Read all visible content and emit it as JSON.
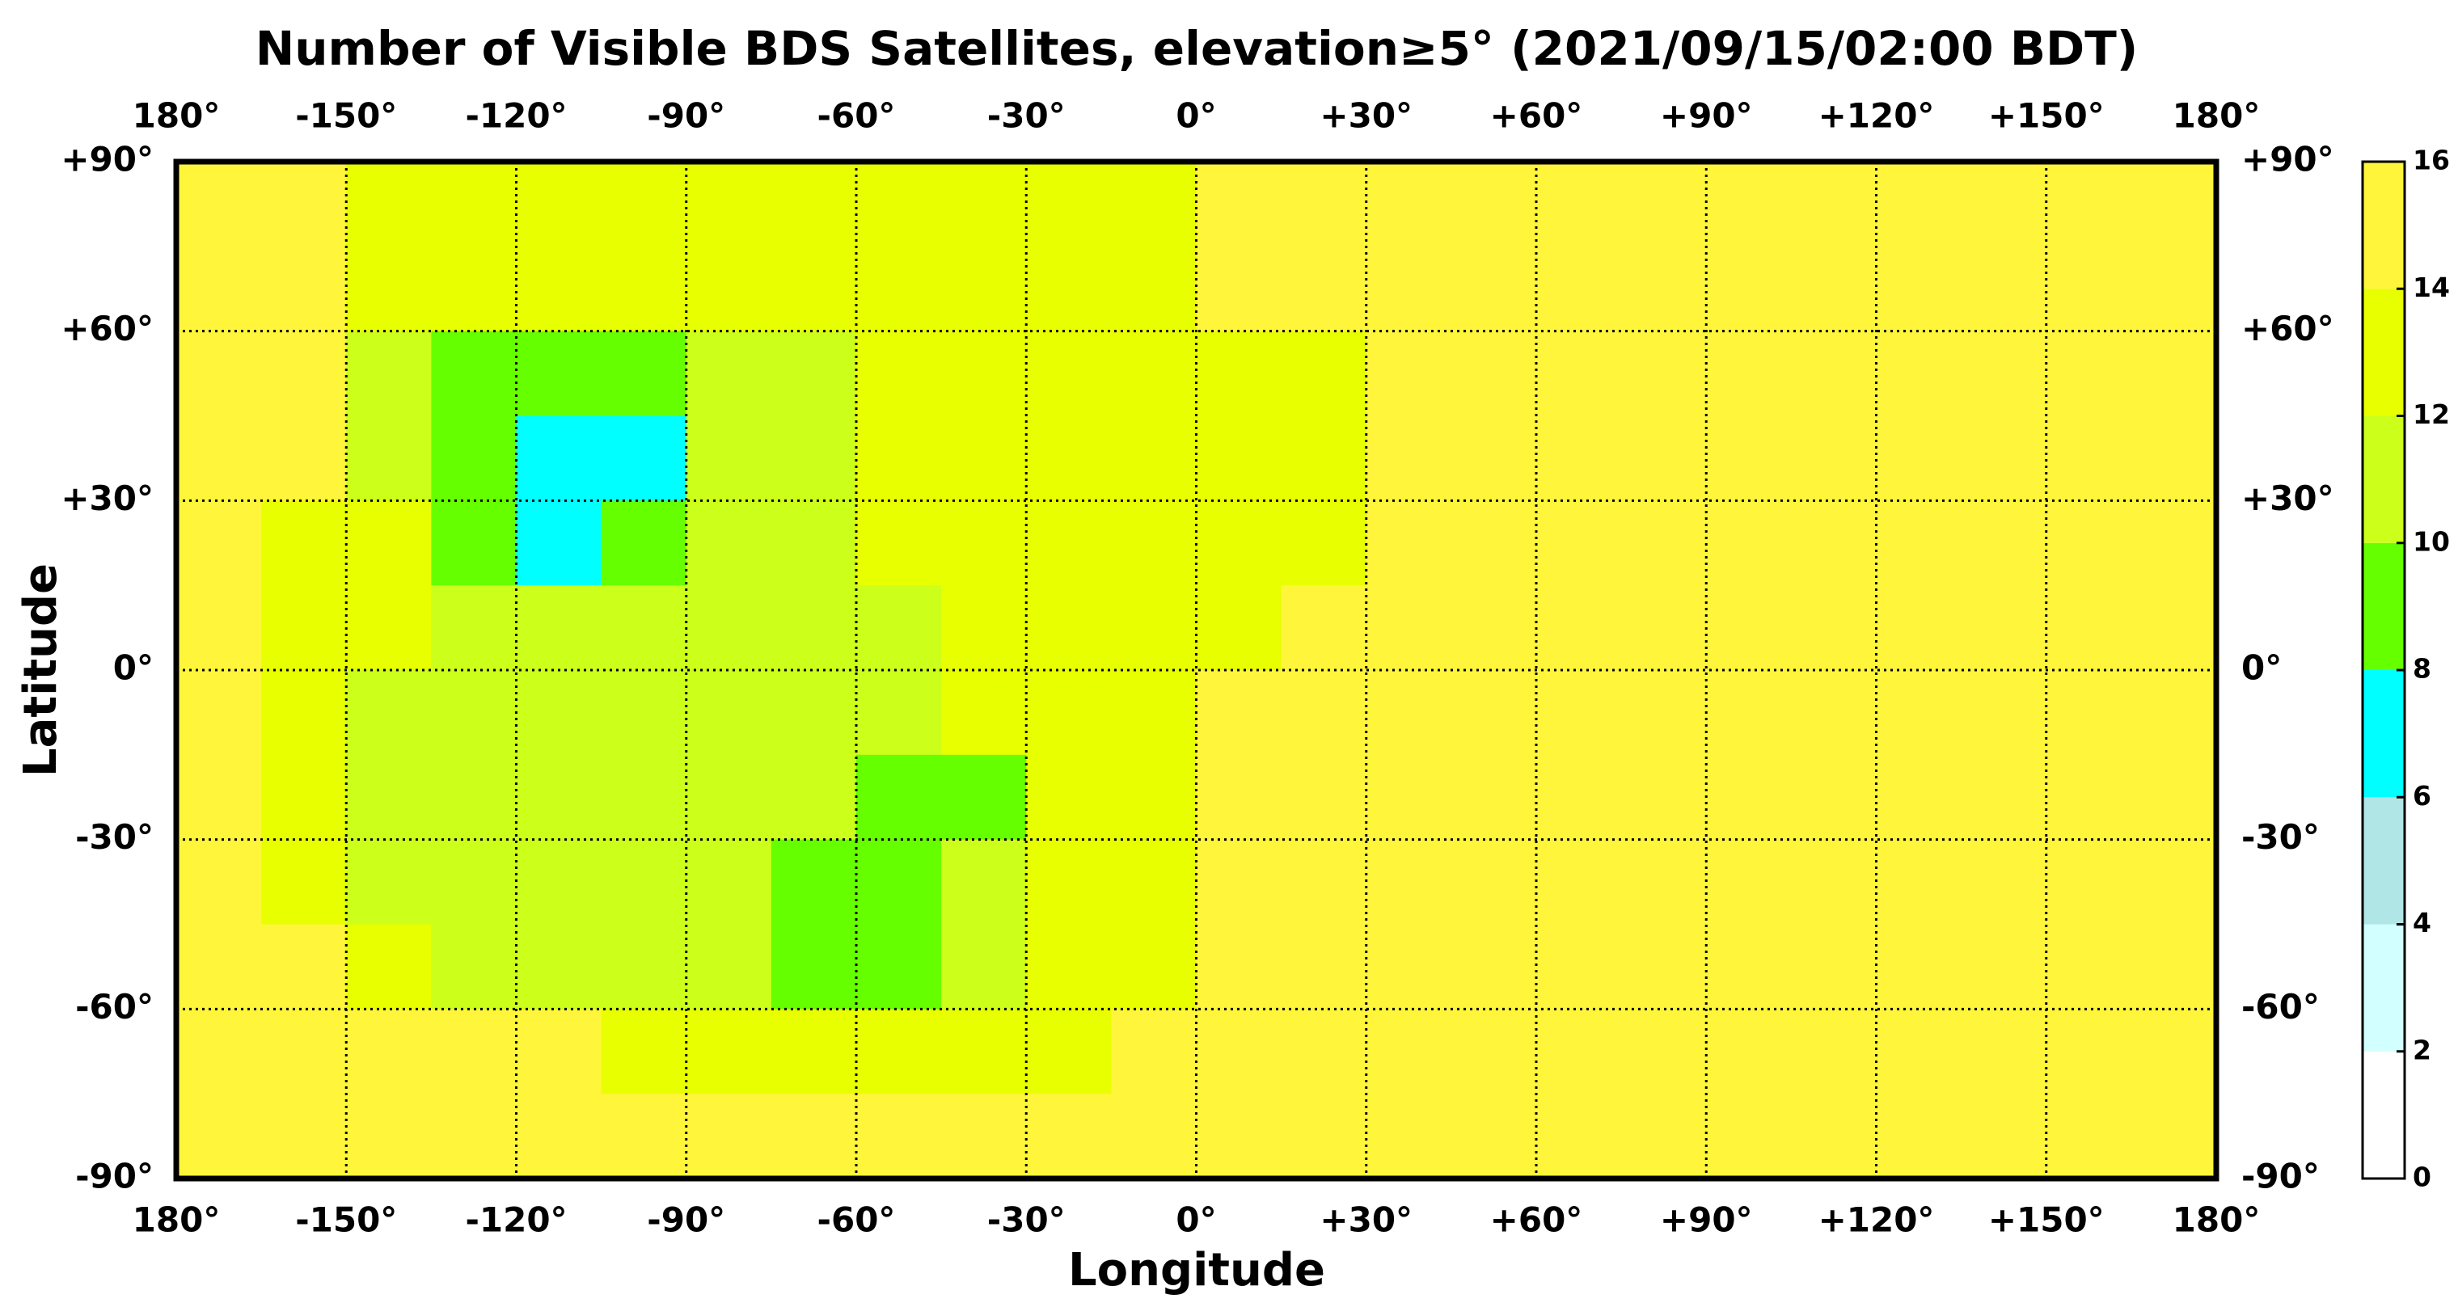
{
  "chart_data": {
    "type": "heatmap",
    "title": "Number of Visible BDS Satellites, elevation≥5° (2021/09/15/02:00 BDT)",
    "x_label": "Longitude",
    "y_label": "Latitude",
    "xlim": [
      -180,
      180
    ],
    "ylim": [
      -90,
      90
    ],
    "xticks": [
      {
        "value": -180,
        "label": "180°"
      },
      {
        "value": -150,
        "label": "-150°"
      },
      {
        "value": -120,
        "label": "-120°"
      },
      {
        "value": -90,
        "label": "-90°"
      },
      {
        "value": -60,
        "label": "-60°"
      },
      {
        "value": -30,
        "label": "-30°"
      },
      {
        "value": 0,
        "label": "0°"
      },
      {
        "value": 30,
        "label": "+30°"
      },
      {
        "value": 60,
        "label": "+60°"
      },
      {
        "value": 90,
        "label": "+90°"
      },
      {
        "value": 120,
        "label": "+120°"
      },
      {
        "value": 150,
        "label": "+150°"
      },
      {
        "value": 180,
        "label": "180°"
      }
    ],
    "yticks": [
      {
        "value": 90,
        "label": "+90°"
      },
      {
        "value": 60,
        "label": "+60°"
      },
      {
        "value": 30,
        "label": "+30°"
      },
      {
        "value": 0,
        "label": "0°"
      },
      {
        "value": -30,
        "label": "-30°"
      },
      {
        "value": -60,
        "label": "-60°"
      },
      {
        "value": -90,
        "label": "-90°"
      }
    ],
    "grid": true,
    "colorbar": {
      "ticks": [
        0,
        2,
        4,
        6,
        8,
        10,
        12,
        14,
        16
      ],
      "colors": [
        "#ffffff",
        "#d2ffff",
        "#b0e6e6",
        "#00ffff",
        "#66ff00",
        "#ccff1a",
        "#e8ff00",
        "#fff53a"
      ]
    },
    "z": [
      [
        15,
        15,
        13,
        13,
        13,
        13,
        13,
        13,
        13,
        13,
        13,
        13,
        15,
        15,
        15,
        15,
        15,
        15,
        15,
        15,
        15,
        15,
        15,
        15
      ],
      [
        15,
        15,
        13,
        13,
        13,
        13,
        13,
        13,
        13,
        13,
        13,
        13,
        15,
        15,
        15,
        15,
        15,
        15,
        15,
        15,
        15,
        15,
        15,
        15
      ],
      [
        15,
        15,
        11,
        9,
        9,
        9,
        11,
        11,
        13,
        13,
        13,
        13,
        13,
        13,
        15,
        15,
        15,
        15,
        15,
        15,
        15,
        15,
        15,
        15
      ],
      [
        15,
        15,
        11,
        9,
        7,
        7,
        11,
        11,
        13,
        13,
        13,
        13,
        13,
        13,
        15,
        15,
        15,
        15,
        15,
        15,
        15,
        15,
        15,
        15
      ],
      [
        15,
        13,
        13,
        9,
        7,
        9,
        11,
        11,
        13,
        13,
        13,
        13,
        13,
        13,
        15,
        15,
        15,
        15,
        15,
        15,
        15,
        15,
        15,
        15
      ],
      [
        15,
        13,
        13,
        11,
        11,
        11,
        11,
        11,
        11,
        13,
        13,
        13,
        13,
        15,
        15,
        15,
        15,
        15,
        15,
        15,
        15,
        15,
        15,
        15
      ],
      [
        15,
        13,
        11,
        11,
        11,
        11,
        11,
        11,
        11,
        13,
        13,
        13,
        15,
        15,
        15,
        15,
        15,
        15,
        15,
        15,
        15,
        15,
        15,
        15
      ],
      [
        15,
        13,
        11,
        11,
        11,
        11,
        11,
        11,
        9,
        9,
        13,
        13,
        15,
        15,
        15,
        15,
        15,
        15,
        15,
        15,
        15,
        15,
        15,
        15
      ],
      [
        15,
        13,
        11,
        11,
        11,
        11,
        11,
        9,
        9,
        11,
        13,
        13,
        15,
        15,
        15,
        15,
        15,
        15,
        15,
        15,
        15,
        15,
        15,
        15
      ],
      [
        15,
        15,
        13,
        11,
        11,
        11,
        11,
        9,
        9,
        11,
        13,
        13,
        15,
        15,
        15,
        15,
        15,
        15,
        15,
        15,
        15,
        15,
        15,
        15
      ],
      [
        15,
        15,
        15,
        15,
        15,
        13,
        13,
        13,
        13,
        13,
        13,
        15,
        15,
        15,
        15,
        15,
        15,
        15,
        15,
        15,
        15,
        15,
        15,
        15
      ],
      [
        15,
        15,
        15,
        15,
        15,
        15,
        15,
        15,
        15,
        15,
        15,
        15,
        15,
        15,
        15,
        15,
        15,
        15,
        15,
        15,
        15,
        15,
        15,
        15
      ]
    ]
  }
}
